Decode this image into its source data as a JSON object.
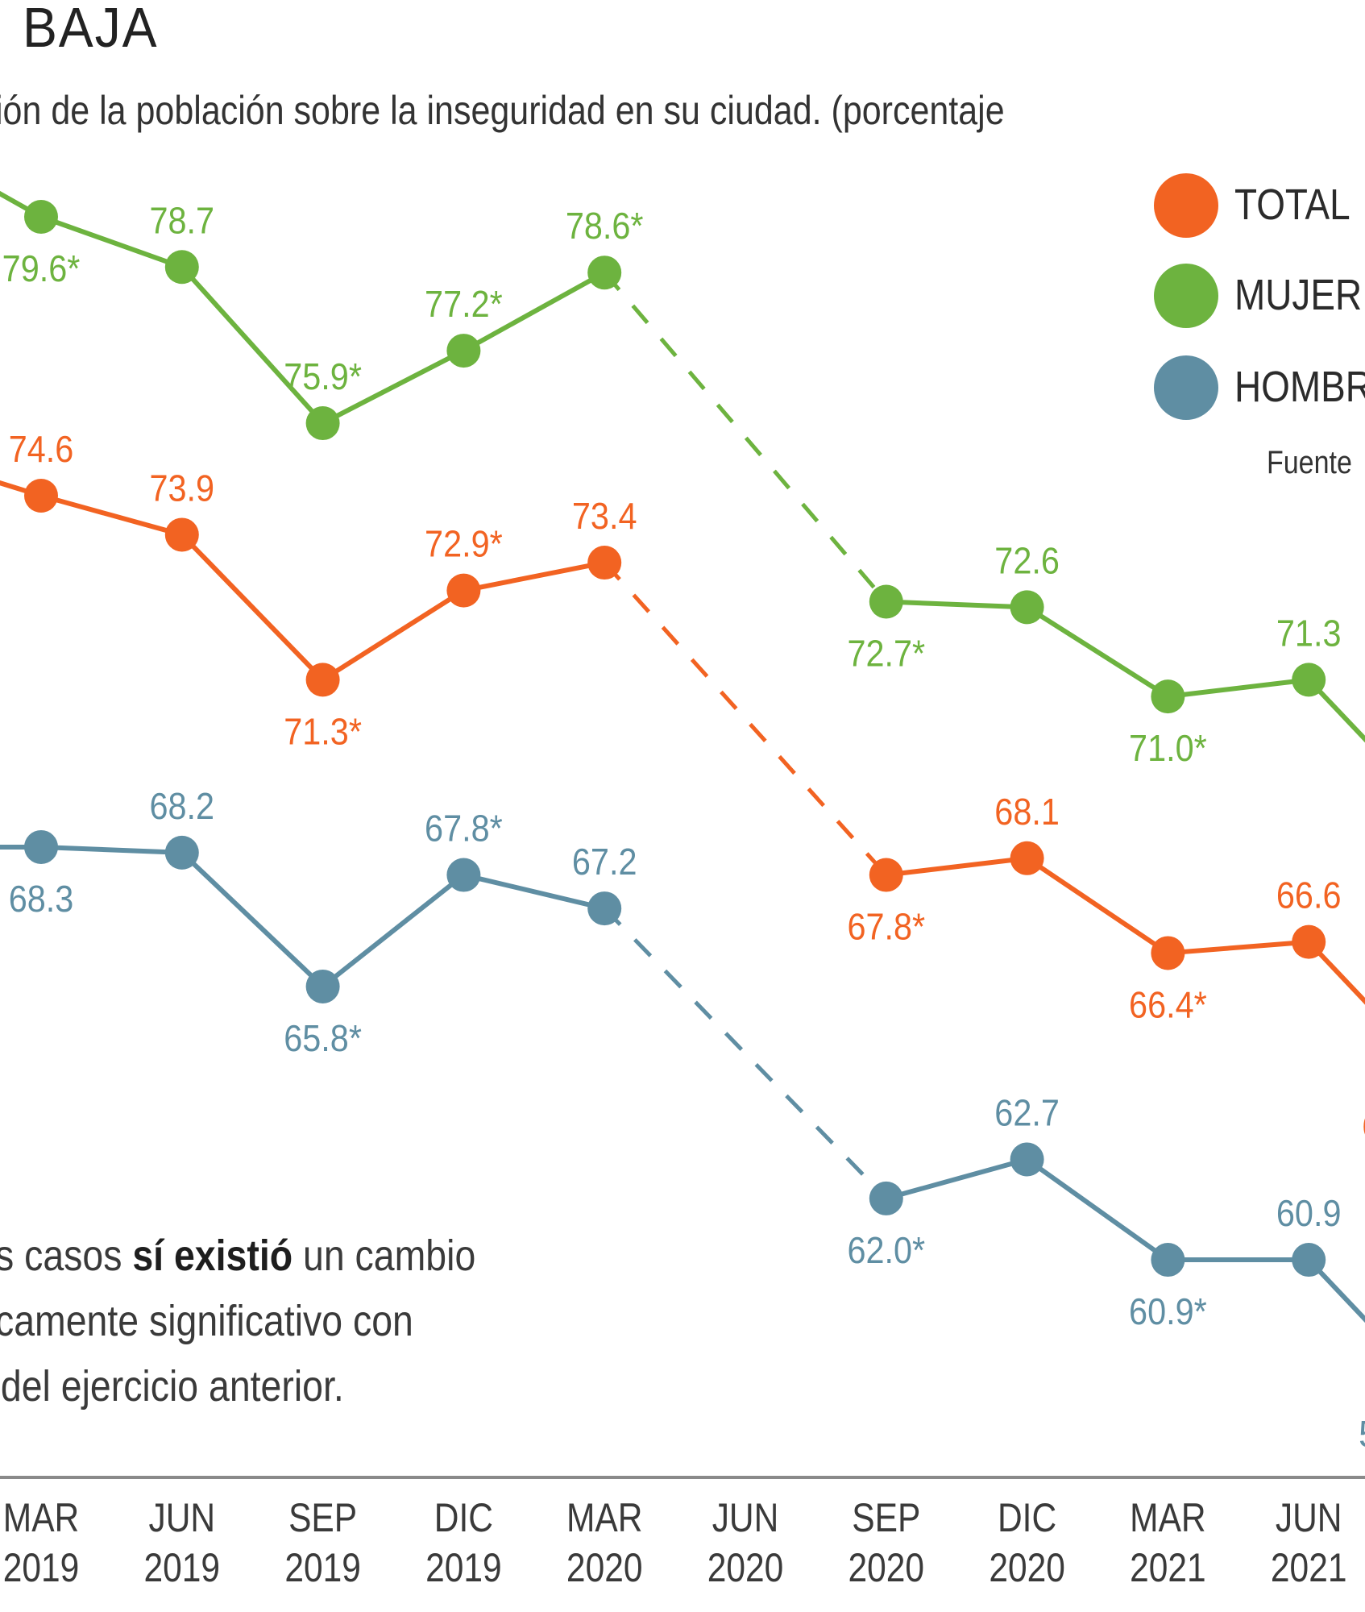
{
  "header": {
    "title": "BAJA",
    "subtitle": "ión de la población sobre la inseguridad en su ciudad. (porcentaje"
  },
  "legend": {
    "items": [
      {
        "label": "TOTAL",
        "color": "#f26322"
      },
      {
        "label": "MUJER",
        "color": "#6db33f"
      },
      {
        "label": "HOMBR",
        "color": "#5f8ea3"
      }
    ],
    "source": "Fuente"
  },
  "note": {
    "line1_pre": "s casos ",
    "line1_bold": "sí existió",
    "line1_post": " un cambio",
    "line2": "camente significativo con",
    "line3": "del ejercicio anterior."
  },
  "chart_data": {
    "type": "line",
    "title": "BAJA",
    "subtitle": "ión de la población sobre la inseguridad en su ciudad. (porcentaje",
    "xlabel": "",
    "ylabel": "",
    "grid": false,
    "legend_position": "top-right",
    "categories": [
      {
        "month": "MAR",
        "year": "2019"
      },
      {
        "month": "JUN",
        "year": "2019"
      },
      {
        "month": "SEP",
        "year": "2019"
      },
      {
        "month": "DIC",
        "year": "2019"
      },
      {
        "month": "MAR",
        "year": "2020"
      },
      {
        "month": "JUN",
        "year": "2020"
      },
      {
        "month": "SEP",
        "year": "2020"
      },
      {
        "month": "DIC",
        "year": "2020"
      },
      {
        "month": "MAR",
        "year": "2021"
      },
      {
        "month": "JUN",
        "year": "2021"
      }
    ],
    "gap_note": "JUN 2020 has no data; dashed line connects MAR 2020 to SEP 2020",
    "ylim": [
      58,
      81
    ],
    "series": [
      {
        "name": "MUJER",
        "color": "#6db33f",
        "values": [
          79.6,
          78.7,
          75.9,
          77.2,
          78.6,
          null,
          72.7,
          72.6,
          71.0,
          71.3
        ],
        "labels": [
          "79.6*",
          "78.7",
          "75.9*",
          "77.2*",
          "78.6*",
          "",
          "72.7*",
          "72.6",
          "71.0*",
          "71.3"
        ],
        "label_pos": [
          "below",
          "above",
          "above",
          "above",
          "above",
          "",
          "below",
          "above",
          "below",
          "above"
        ]
      },
      {
        "name": "TOTAL",
        "color": "#f26322",
        "values": [
          74.6,
          73.9,
          71.3,
          72.9,
          73.4,
          null,
          67.8,
          68.1,
          66.4,
          66.6
        ],
        "labels": [
          "74.6",
          "73.9",
          "71.3*",
          "72.9*",
          "73.4",
          "",
          "67.8*",
          "68.1",
          "66.4*",
          "66.6"
        ],
        "label_pos": [
          "above",
          "above",
          "below",
          "above",
          "above",
          "",
          "below",
          "above",
          "below",
          "above"
        ]
      },
      {
        "name": "HOMBRE",
        "color": "#5f8ea3",
        "values": [
          68.3,
          68.2,
          65.8,
          67.8,
          67.2,
          null,
          62.0,
          62.7,
          60.9,
          60.9
        ],
        "labels": [
          "68.3",
          "68.2",
          "65.8*",
          "67.8*",
          "67.2",
          "",
          "62.0*",
          "62.7",
          "60.9*",
          "60.9"
        ],
        "label_pos": [
          "below",
          "above",
          "below",
          "above",
          "above",
          "",
          "below",
          "above",
          "below",
          "above"
        ]
      }
    ]
  }
}
